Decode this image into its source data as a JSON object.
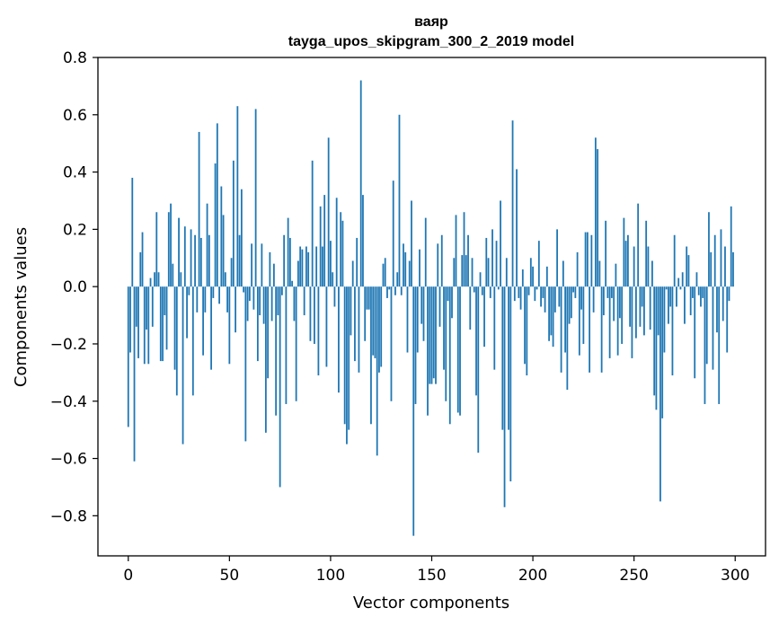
{
  "chart_data": {
    "type": "bar",
    "title": "ваяр",
    "subtitle": "tayga_upos_skipgram_300_2_2019 model",
    "xlabel": "Vector components",
    "ylabel": "Components values",
    "xlim": [
      -15,
      315
    ],
    "ylim": [
      -0.94,
      0.8
    ],
    "xticks": [
      0,
      50,
      100,
      150,
      200,
      250,
      300
    ],
    "yticks": [
      -0.8,
      -0.6,
      -0.4,
      -0.2,
      0.0,
      0.2,
      0.4,
      0.6,
      0.8
    ],
    "ytick_labels": [
      "−0.8",
      "−0.6",
      "−0.4",
      "−0.2",
      "0.0",
      "0.2",
      "0.4",
      "0.6",
      "0.8"
    ],
    "bar_color": "#1f77b4",
    "grid": false,
    "x": "0..299 (one bar per vector component)",
    "values": [
      -0.49,
      -0.23,
      0.38,
      -0.61,
      -0.14,
      -0.25,
      0.12,
      0.19,
      -0.27,
      -0.15,
      -0.27,
      0.03,
      -0.14,
      0.05,
      0.26,
      0.05,
      -0.26,
      -0.26,
      -0.1,
      -0.22,
      0.26,
      0.29,
      0.08,
      -0.29,
      -0.38,
      0.24,
      0.05,
      -0.55,
      0.21,
      -0.18,
      -0.03,
      0.2,
      -0.38,
      0.18,
      -0.09,
      0.54,
      0.17,
      -0.24,
      -0.09,
      0.29,
      0.18,
      -0.29,
      -0.04,
      0.43,
      0.57,
      -0.06,
      0.35,
      0.25,
      0.05,
      -0.09,
      -0.27,
      0.1,
      0.44,
      -0.16,
      0.63,
      0.18,
      0.34,
      -0.02,
      -0.54,
      -0.12,
      -0.05,
      0.15,
      -0.08,
      0.62,
      -0.26,
      -0.1,
      0.15,
      -0.13,
      -0.51,
      -0.32,
      0.12,
      -0.12,
      0.08,
      -0.45,
      -0.1,
      -0.7,
      -0.03,
      0.18,
      -0.41,
      0.24,
      0.17,
      0.02,
      -0.12,
      -0.4,
      0.09,
      0.14,
      0.13,
      -0.1,
      0.14,
      0.12,
      -0.19,
      0.44,
      -0.2,
      0.14,
      -0.31,
      0.28,
      0.14,
      0.32,
      -0.28,
      0.52,
      0.16,
      0.05,
      -0.07,
      0.31,
      -0.37,
      0.26,
      0.23,
      -0.48,
      -0.55,
      -0.5,
      -0.17,
      0.09,
      -0.26,
      0.17,
      -0.3,
      0.72,
      0.32,
      -0.19,
      -0.08,
      -0.08,
      -0.48,
      -0.24,
      -0.25,
      -0.59,
      -0.3,
      -0.28,
      0.08,
      0.1,
      -0.04,
      -0.01,
      -0.4,
      0.37,
      -0.03,
      0.05,
      0.6,
      -0.03,
      0.15,
      0.12,
      -0.23,
      0.09,
      0.3,
      -0.87,
      -0.41,
      -0.23,
      0.13,
      -0.13,
      -0.19,
      0.24,
      -0.45,
      -0.34,
      -0.34,
      -0.32,
      -0.34,
      0.15,
      -0.14,
      0.18,
      -0.29,
      -0.4,
      -0.05,
      -0.48,
      -0.11,
      0.1,
      0.25,
      -0.44,
      -0.45,
      0.11,
      0.26,
      0.11,
      0.18,
      -0.15,
      0.1,
      -0.02,
      -0.38,
      -0.58,
      0.05,
      -0.03,
      -0.21,
      0.17,
      0.1,
      -0.04,
      0.2,
      -0.29,
      0.16,
      -0.01,
      0.3,
      -0.5,
      -0.77,
      0.1,
      -0.5,
      -0.68,
      0.58,
      -0.05,
      0.41,
      -0.04,
      -0.08,
      0.06,
      -0.27,
      -0.31,
      -0.03,
      0.1,
      0.07,
      -0.05,
      -0.01,
      0.16,
      -0.07,
      -0.04,
      -0.09,
      0.07,
      -0.19,
      -0.17,
      -0.21,
      -0.09,
      0.2,
      -0.07,
      -0.3,
      0.09,
      -0.23,
      -0.36,
      -0.13,
      -0.11,
      -0.02,
      -0.04,
      0.12,
      -0.24,
      -0.08,
      -0.2,
      0.19,
      0.19,
      -0.3,
      0.18,
      -0.09,
      0.52,
      0.48,
      0.09,
      -0.3,
      -0.1,
      0.23,
      -0.04,
      -0.25,
      -0.04,
      -0.12,
      0.08,
      -0.24,
      -0.11,
      -0.2,
      0.24,
      0.16,
      0.18,
      -0.14,
      -0.25,
      0.14,
      -0.18,
      0.29,
      -0.14,
      -0.07,
      -0.17,
      0.23,
      0.14,
      -0.15,
      0.09,
      -0.38,
      -0.43,
      -0.17,
      -0.75,
      -0.46,
      -0.23,
      -0.01,
      -0.13,
      -0.07,
      -0.31,
      0.18,
      -0.07,
      0.03,
      -0.01,
      0.05,
      -0.13,
      0.14,
      0.11,
      -0.1,
      -0.04,
      -0.32,
      0.05,
      -0.03,
      -0.07,
      -0.04,
      -0.41,
      -0.27,
      0.26,
      0.12,
      -0.29,
      0.18,
      -0.16,
      -0.41,
      0.2,
      -0.12,
      0.14,
      -0.23,
      -0.05,
      0.28,
      0.12
    ]
  }
}
